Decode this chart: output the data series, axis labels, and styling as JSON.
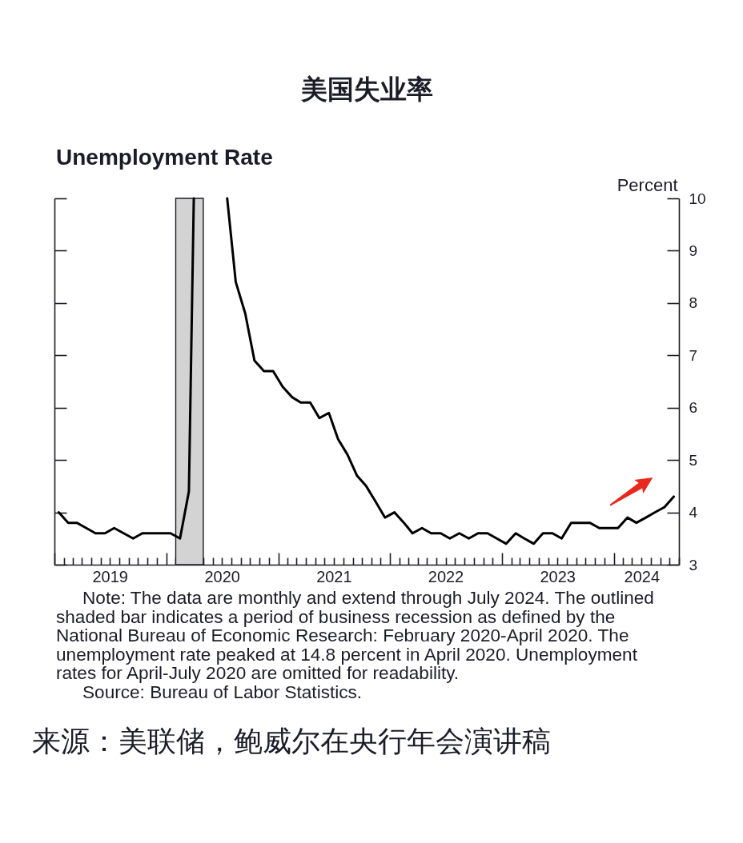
{
  "chart_data": {
    "type": "line",
    "title": "美国失业率",
    "subtitle": "Unemployment Rate",
    "ylabel": "Percent",
    "x": [
      "2019-01-15",
      "2019-02-15",
      "2019-03-15",
      "2019-04-15",
      "2019-05-15",
      "2019-06-15",
      "2019-07-15",
      "2019-08-15",
      "2019-09-15",
      "2019-10-15",
      "2019-11-15",
      "2019-12-15",
      "2020-01-15",
      "2020-02-15",
      "2020-03-15",
      "2020-03-31",
      "2020-04-15",
      "2020-05-15",
      "2020-06-15",
      "2020-07-15",
      "2020-07-18",
      "2020-08-15",
      "2020-09-15",
      "2020-10-15",
      "2020-11-15",
      "2020-12-15",
      "2021-01-15",
      "2021-02-15",
      "2021-03-15",
      "2021-04-15",
      "2021-05-15",
      "2021-06-15",
      "2021-07-15",
      "2021-08-15",
      "2021-09-15",
      "2021-10-15",
      "2021-11-15",
      "2021-12-15",
      "2022-01-15",
      "2022-02-15",
      "2022-03-15",
      "2022-04-15",
      "2022-05-15",
      "2022-06-15",
      "2022-07-15",
      "2022-08-15",
      "2022-09-15",
      "2022-10-15",
      "2022-11-15",
      "2022-12-15",
      "2023-01-15",
      "2023-02-15",
      "2023-03-15",
      "2023-04-15",
      "2023-05-15",
      "2023-06-15",
      "2023-07-15",
      "2023-08-15",
      "2023-09-15",
      "2023-10-15",
      "2023-11-15",
      "2023-12-15",
      "2024-01-15",
      "2024-02-15",
      "2024-03-15",
      "2024-04-15",
      "2024-05-15",
      "2024-06-15",
      "2024-07-15"
    ],
    "series": [
      {
        "color": "#000000",
        "values": [
          4.0,
          3.8,
          3.8,
          3.7,
          3.6,
          3.6,
          3.7,
          3.6,
          3.5,
          3.6,
          3.6,
          3.6,
          3.6,
          3.5,
          4.4,
          10,
          null,
          null,
          null,
          null,
          10,
          8.4,
          7.8,
          6.9,
          6.7,
          6.7,
          6.4,
          6.2,
          6.1,
          6.1,
          5.8,
          5.9,
          5.4,
          5.1,
          4.7,
          4.5,
          4.2,
          3.9,
          4.0,
          3.8,
          3.6,
          3.7,
          3.6,
          3.6,
          3.5,
          3.6,
          3.5,
          3.6,
          3.6,
          3.5,
          3.4,
          3.6,
          3.5,
          3.4,
          3.6,
          3.6,
          3.5,
          3.8,
          3.8,
          3.8,
          3.7,
          3.7,
          3.7,
          3.9,
          3.8,
          3.9,
          4.0,
          4.1,
          4.3
        ]
      }
    ],
    "xlim": [
      "2019-01-01",
      "2024-08-01"
    ],
    "xticks": [
      {
        "value": "2019-01",
        "label": null
      },
      {
        "value": "2019-02",
        "label": null
      },
      {
        "value": "2019-03",
        "label": null
      },
      {
        "value": "2019-04",
        "label": null
      },
      {
        "value": "2019-05",
        "label": null
      },
      {
        "value": "2019-06",
        "label": null
      },
      {
        "value": "2019-07",
        "label": "2019"
      },
      {
        "value": "2019-08",
        "label": null
      },
      {
        "value": "2019-09",
        "label": null
      },
      {
        "value": "2019-10",
        "label": null
      },
      {
        "value": "2019-11",
        "label": null
      },
      {
        "value": "2019-12",
        "label": null
      },
      {
        "value": "2020-01",
        "label": null
      },
      {
        "value": "2020-02",
        "label": null
      },
      {
        "value": "2020-03",
        "label": null
      },
      {
        "value": "2020-04",
        "label": null
      },
      {
        "value": "2020-05",
        "label": null
      },
      {
        "value": "2020-06",
        "label": null
      },
      {
        "value": "2020-07",
        "label": "2020"
      },
      {
        "value": "2020-08",
        "label": null
      },
      {
        "value": "2020-09",
        "label": null
      },
      {
        "value": "2020-10",
        "label": null
      },
      {
        "value": "2020-11",
        "label": null
      },
      {
        "value": "2020-12",
        "label": null
      },
      {
        "value": "2021-01",
        "label": null
      },
      {
        "value": "2021-02",
        "label": null
      },
      {
        "value": "2021-03",
        "label": null
      },
      {
        "value": "2021-04",
        "label": null
      },
      {
        "value": "2021-05",
        "label": null
      },
      {
        "value": "2021-06",
        "label": null
      },
      {
        "value": "2021-07",
        "label": "2021"
      },
      {
        "value": "2021-08",
        "label": null
      },
      {
        "value": "2021-09",
        "label": null
      },
      {
        "value": "2021-10",
        "label": null
      },
      {
        "value": "2021-11",
        "label": null
      },
      {
        "value": "2021-12",
        "label": null
      },
      {
        "value": "2022-01",
        "label": null
      },
      {
        "value": "2022-02",
        "label": null
      },
      {
        "value": "2022-03",
        "label": null
      },
      {
        "value": "2022-04",
        "label": null
      },
      {
        "value": "2022-05",
        "label": null
      },
      {
        "value": "2022-06",
        "label": null
      },
      {
        "value": "2022-07",
        "label": "2022"
      },
      {
        "value": "2022-08",
        "label": null
      },
      {
        "value": "2022-09",
        "label": null
      },
      {
        "value": "2022-10",
        "label": null
      },
      {
        "value": "2022-11",
        "label": null
      },
      {
        "value": "2022-12",
        "label": null
      },
      {
        "value": "2023-01",
        "label": null
      },
      {
        "value": "2023-02",
        "label": null
      },
      {
        "value": "2023-03",
        "label": null
      },
      {
        "value": "2023-04",
        "label": null
      },
      {
        "value": "2023-05",
        "label": null
      },
      {
        "value": "2023-06",
        "label": null
      },
      {
        "value": "2023-07",
        "label": "2023"
      },
      {
        "value": "2023-08",
        "label": null
      },
      {
        "value": "2023-09",
        "label": null
      },
      {
        "value": "2023-10",
        "label": null
      },
      {
        "value": "2023-11",
        "label": null
      },
      {
        "value": "2023-12",
        "label": null
      },
      {
        "value": "2024-01",
        "label": null
      },
      {
        "value": "2024-02",
        "label": null
      },
      {
        "value": "2024-03",
        "label": null
      },
      {
        "value": "2024-04",
        "label": "2024"
      },
      {
        "value": "2024-05",
        "label": null
      },
      {
        "value": "2024-06",
        "label": null
      },
      {
        "value": "2024-07",
        "label": null
      },
      {
        "value": "2024-08",
        "label": null
      }
    ],
    "ylim": [
      3,
      10
    ],
    "yticks": [
      3,
      4,
      5,
      6,
      7,
      8,
      9,
      10
    ],
    "bands": [
      {
        "axis": "x",
        "from": "2020-02-01",
        "to": "2020-05-01",
        "color": "#d3d3d3"
      }
    ],
    "annotations": [
      "Note: The data are monthly and extend through July 2024. The outlined shaded bar indicates a period of business recession as defined by the National Bureau of Economic Research: February 2020-April 2020. The unemployment rate peaked at 14.8 percent in April 2020. Unemployment rates for April-July 2020 are omitted for readability.",
      "Source: Bureau of Labor Statistics.",
      "来源：美联储，鲍威尔在央行年会演讲稿"
    ]
  }
}
